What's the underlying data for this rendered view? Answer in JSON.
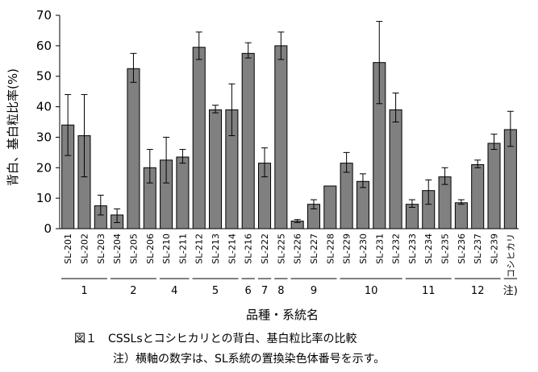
{
  "chart_data": {
    "type": "bar",
    "ylabel": "背白、基白粒比率(%)",
    "xlabel": "品種・系統名",
    "ylim": [
      0,
      70
    ],
    "yticks": [
      0,
      10,
      20,
      30,
      40,
      50,
      60,
      70
    ],
    "grid": false,
    "categories": [
      "SL-201",
      "SL-202",
      "SL-203",
      "SL-204",
      "SL-205",
      "SL-206",
      "SL-210",
      "SL-211",
      "SL-212",
      "SL-213",
      "SL-214",
      "SL-216",
      "SL-222",
      "SL-225",
      "SL-226",
      "SL-227",
      "SL-228",
      "SL-229",
      "SL-230",
      "SL-231",
      "SL-232",
      "SL-233",
      "SL-234",
      "SL-235",
      "SL-236",
      "SL-237",
      "SL-239",
      "コシヒカリ"
    ],
    "values": [
      34.0,
      30.5,
      7.5,
      4.5,
      52.5,
      20.0,
      22.5,
      23.5,
      59.5,
      39.0,
      39.0,
      57.5,
      21.5,
      60.0,
      2.5,
      8.0,
      14.0,
      21.5,
      15.5,
      54.5,
      39.0,
      8.0,
      12.5,
      17.0,
      8.5,
      21.0,
      28.0,
      32.5
    ],
    "error_low": [
      24.0,
      17.0,
      4.5,
      2.0,
      48.0,
      15.0,
      15.0,
      21.5,
      55.5,
      38.0,
      30.5,
      56.0,
      17.0,
      55.5,
      2.0,
      6.5,
      14.0,
      18.5,
      13.5,
      41.0,
      35.0,
      7.0,
      8.0,
      14.5,
      8.0,
      20.0,
      26.0,
      27.0
    ],
    "error_high": [
      44.0,
      44.0,
      11.0,
      6.5,
      57.5,
      26.0,
      30.0,
      26.0,
      64.5,
      40.5,
      47.5,
      61.0,
      26.5,
      64.5,
      3.0,
      9.5,
      14.0,
      25.0,
      18.0,
      68.0,
      44.5,
      9.5,
      16.0,
      20.0,
      9.5,
      22.5,
      31.0,
      38.5
    ],
    "groups": [
      {
        "label": "1",
        "first": 0,
        "last": 2
      },
      {
        "label": "2",
        "first": 3,
        "last": 5
      },
      {
        "label": "4",
        "first": 6,
        "last": 7
      },
      {
        "label": "5",
        "first": 8,
        "last": 10
      },
      {
        "label": "6",
        "first": 11,
        "last": 11
      },
      {
        "label": "7",
        "first": 12,
        "last": 12
      },
      {
        "label": "8",
        "first": 13,
        "last": 13
      },
      {
        "label": "9",
        "first": 14,
        "last": 16
      },
      {
        "label": "10",
        "first": 17,
        "last": 20
      },
      {
        "label": "11",
        "first": 21,
        "last": 23
      },
      {
        "label": "12",
        "first": 24,
        "last": 26
      },
      {
        "label": "注)",
        "first": 27,
        "last": 27
      }
    ],
    "bar_color": "#808080"
  },
  "caption": {
    "line1": "図１　CSSLsとコシヒカリとの背白、基白粒比率の比較",
    "line2": "注）横軸の数字は、SL系統の置換染色体番号を示す。"
  }
}
